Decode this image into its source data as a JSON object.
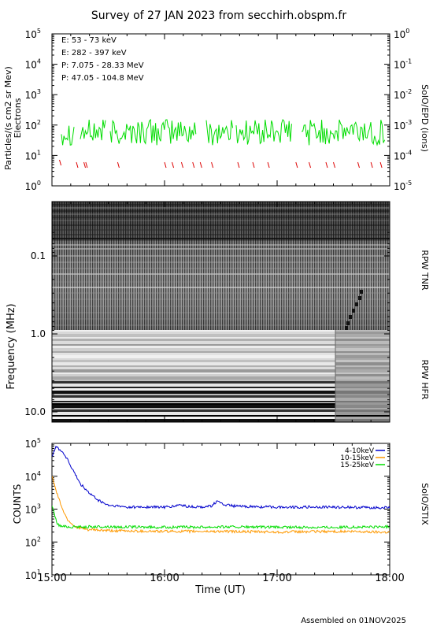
{
  "title": "Survey of 27 JAN 2023 from secchirh.obspm.fr",
  "footer": "Assembled on 01NOV2025",
  "colors": {
    "green": "#00dd00",
    "red": "#dd0000",
    "black": "#000000",
    "blue": "#0000cc",
    "orange": "#ff9900"
  },
  "chart_data": [
    {
      "type": "line",
      "panel": "EPD",
      "ylabel": "Particles/(s cm2 sr Mev)",
      "ylabel2": "Electrons",
      "right_label": "SolO/EPD (ions)",
      "ylim": [
        1,
        100000
      ],
      "yscale": "log",
      "y_ticks": [
        "10^0",
        "10^1",
        "10^2",
        "10^3",
        "10^4",
        "10^5"
      ],
      "ylim_right": [
        1e-05,
        1
      ],
      "y_ticks_right": [
        "10^-5",
        "10^-4",
        "10^-3",
        "10^-2",
        "10^-1",
        "10^0"
      ],
      "legend_placement": "top-left",
      "series": [
        {
          "name": "E: 53 - 73 keV",
          "color": "green",
          "typical_value": 60,
          "range": [
            20,
            150
          ]
        },
        {
          "name": "E: 282 - 397 keV",
          "color": "red",
          "typical_value": 5,
          "sparse_points": [
            [
              "15:04",
              6
            ],
            [
              "15:13",
              5
            ],
            [
              "15:17",
              5
            ],
            [
              "15:18",
              5
            ],
            [
              "15:35",
              5
            ],
            [
              "16:00",
              5
            ],
            [
              "16:04",
              5
            ],
            [
              "16:09",
              5
            ],
            [
              "16:15",
              5
            ],
            [
              "16:19",
              5
            ],
            [
              "16:25",
              5
            ],
            [
              "16:39",
              5
            ],
            [
              "16:47",
              5
            ],
            [
              "16:55",
              5
            ],
            [
              "17:10",
              5
            ],
            [
              "17:17",
              5
            ],
            [
              "17:26",
              5
            ],
            [
              "17:30",
              5
            ],
            [
              "17:43",
              5
            ],
            [
              "17:50",
              5
            ],
            [
              "17:55",
              5
            ]
          ]
        },
        {
          "name": "P: 7.075 - 28.33 MeV",
          "color": "black"
        },
        {
          "name": "P: 47.05 - 104.8 MeV",
          "color": "blue"
        }
      ]
    },
    {
      "type": "heatmap",
      "panel": "RPW",
      "ylabel": "Frequency (MHz)",
      "right_label_top": "RPW TNR",
      "right_label_bottom": "RPW HFR",
      "y_ticks": [
        "0.1",
        "1.0",
        "10.0"
      ],
      "yscale": "log",
      "colormap": "grayscale"
    },
    {
      "type": "line",
      "panel": "STIX",
      "ylabel": "COUNTS",
      "right_label": "SolO/STIX",
      "ylim": [
        10,
        100000
      ],
      "yscale": "log",
      "y_ticks": [
        "10^1",
        "10^2",
        "10^3",
        "10^4",
        "10^5"
      ],
      "legend_placement": "top-right",
      "series": [
        {
          "name": "4-10keV",
          "color": "blue",
          "x": [
            "15:00",
            "15:02",
            "15:05",
            "15:08",
            "15:10",
            "15:15",
            "15:20",
            "15:25",
            "15:30",
            "15:40",
            "16:00",
            "16:05",
            "16:08",
            "16:12",
            "16:18",
            "16:25",
            "16:28",
            "16:30",
            "16:34",
            "16:40",
            "17:00",
            "17:30",
            "18:00"
          ],
          "y": [
            40000,
            80000,
            60000,
            35000,
            20000,
            6000,
            3000,
            1800,
            1300,
            1150,
            1150,
            1200,
            1350,
            1200,
            1150,
            1250,
            1750,
            1450,
            1300,
            1200,
            1150,
            1150,
            1100
          ]
        },
        {
          "name": "10-15keV",
          "color": "orange",
          "x": [
            "15:00",
            "15:02",
            "15:04",
            "15:06",
            "15:08",
            "15:12",
            "15:18",
            "15:30",
            "16:00",
            "16:30",
            "17:00",
            "17:30",
            "18:00"
          ],
          "y": [
            10000,
            4000,
            1800,
            900,
            500,
            300,
            240,
            220,
            210,
            210,
            200,
            210,
            200
          ]
        },
        {
          "name": "15-25keV",
          "color": "green",
          "x": [
            "15:00",
            "15:01",
            "15:02",
            "15:03",
            "15:05",
            "15:10",
            "15:30",
            "16:00",
            "16:30",
            "17:00",
            "17:30",
            "18:00"
          ],
          "y": [
            1300,
            800,
            500,
            350,
            300,
            290,
            290,
            280,
            290,
            280,
            280,
            290
          ]
        }
      ]
    }
  ],
  "x_axis": {
    "label": "Time (UT)",
    "ticks": [
      "15:00",
      "16:00",
      "17:00",
      "18:00"
    ]
  }
}
